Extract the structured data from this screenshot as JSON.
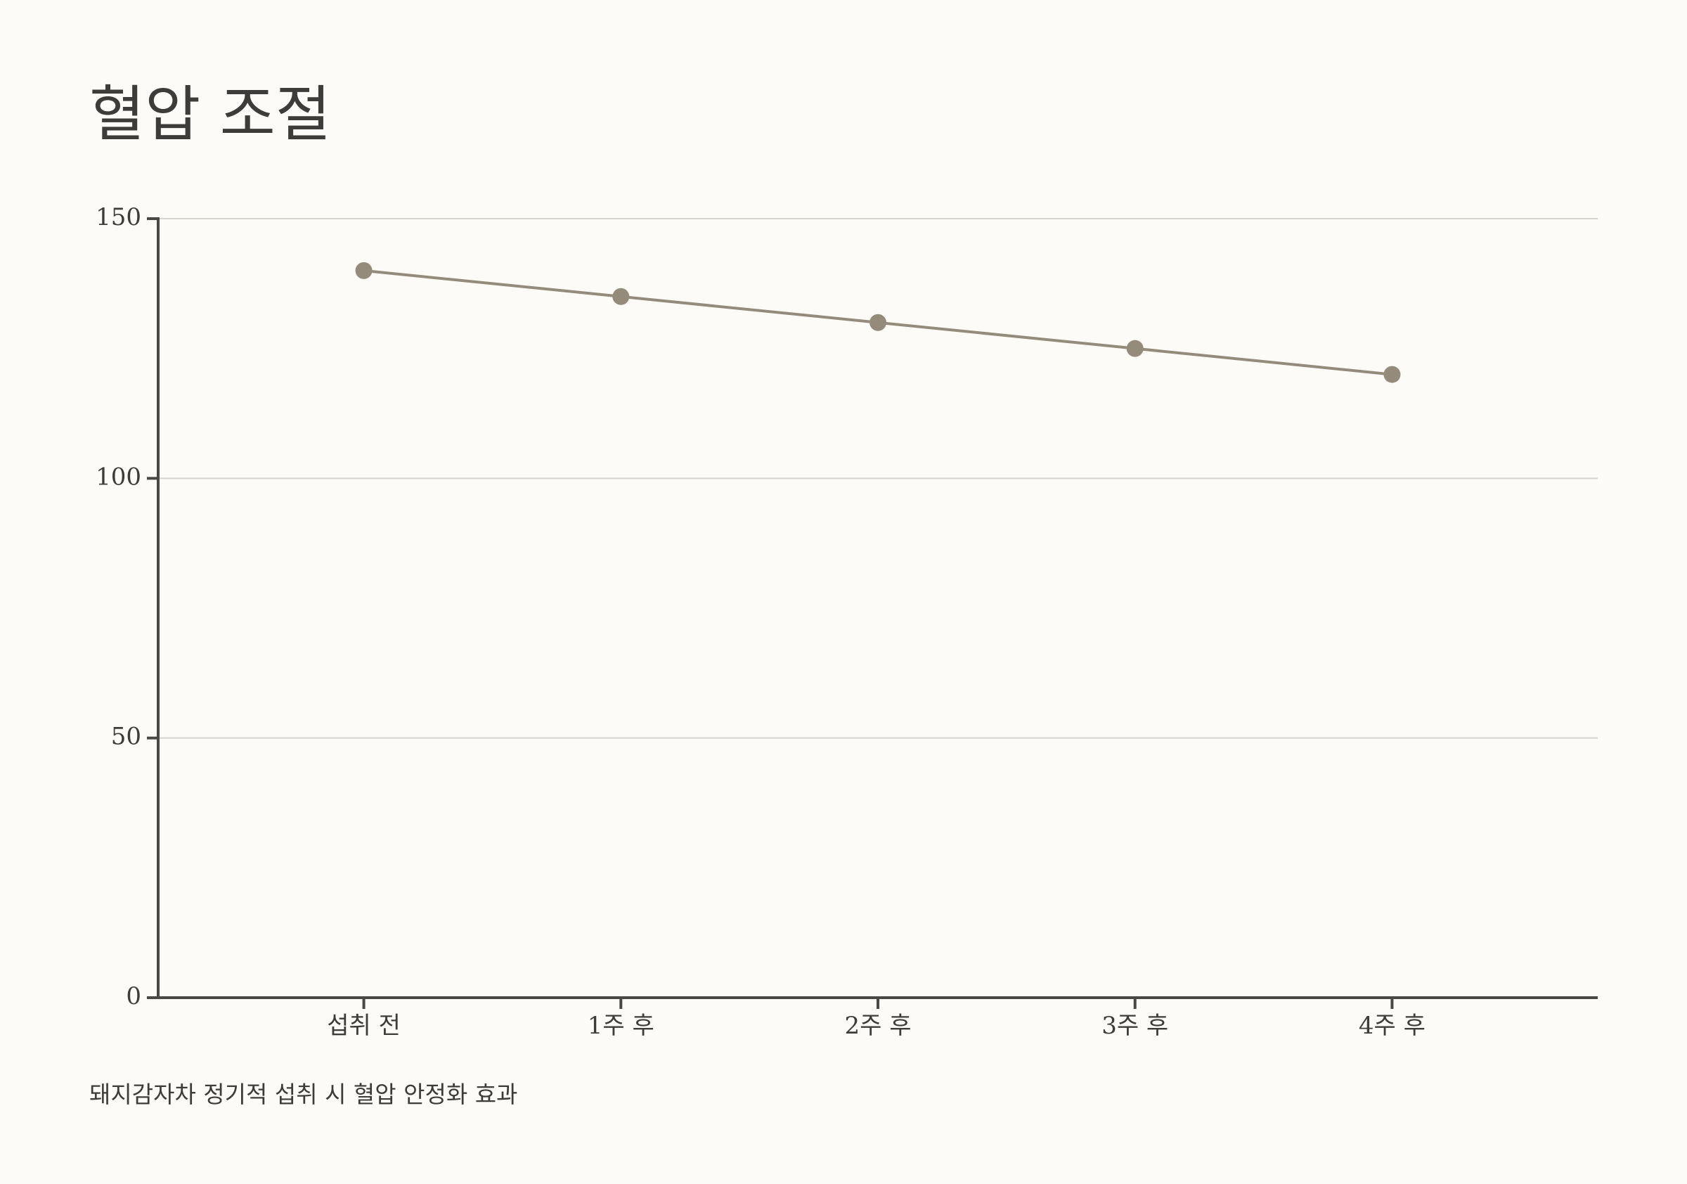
{
  "chart_data": {
    "type": "line",
    "title": "혈압 조절",
    "subtitle": "돼지감자차 정기적 섭취 시 혈압 안정화 효과",
    "categories": [
      "섭취 전",
      "1주 후",
      "2주 후",
      "3주 후",
      "4주 후"
    ],
    "values": [
      140,
      135,
      130,
      125,
      120
    ],
    "color": "#958b7b",
    "ylim": [
      0,
      150
    ],
    "yticks": [
      0,
      50,
      100,
      150
    ],
    "grid": true
  }
}
